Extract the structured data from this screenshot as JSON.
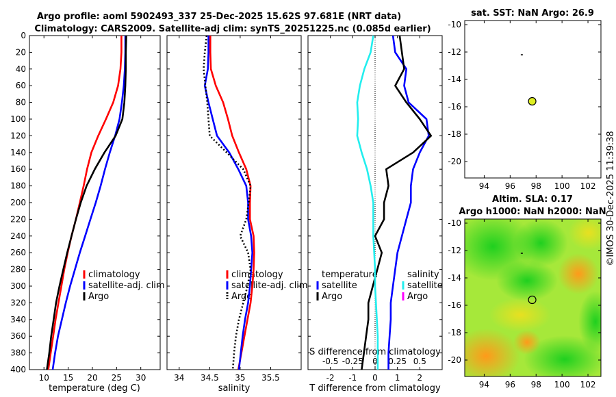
{
  "header": {
    "title_line1": "Argo profile: aoml 5902493_337 25-Dec-2025 15.62S 97.681E (NRT data)",
    "title_line2": "Climatology: CARS2009. Satellite-adj clim: synTS_20251225.nc (0.085d earlier)"
  },
  "credit": "©IMOS 30-Dec-2025 11:39:38",
  "colors": {
    "red": "#ff0000",
    "blue": "#0000ff",
    "black": "#000000",
    "cyan": "#22eeee",
    "magenta": "#ff00ff",
    "dot_fill": "#ddee22"
  },
  "chart_data": [
    {
      "type": "line",
      "id": "temperature",
      "xlabel": "temperature (deg C)",
      "xlim": [
        7,
        34
      ],
      "ylim": [
        0,
        400
      ],
      "xticks": [
        10,
        15,
        20,
        25,
        30
      ],
      "yticks": [
        0,
        20,
        40,
        60,
        80,
        100,
        120,
        140,
        160,
        180,
        200,
        220,
        240,
        260,
        280,
        300,
        320,
        340,
        360,
        380,
        400
      ],
      "legend": [
        "climatology",
        "satellite-adj. clim",
        "Argo"
      ],
      "series": [
        {
          "name": "climatology",
          "color": "red",
          "style": "solid",
          "points": [
            [
              26.0,
              0
            ],
            [
              26.0,
              20
            ],
            [
              25.8,
              40
            ],
            [
              25.3,
              60
            ],
            [
              24.3,
              80
            ],
            [
              22.8,
              100
            ],
            [
              21.2,
              120
            ],
            [
              19.8,
              140
            ],
            [
              18.9,
              160
            ],
            [
              18.2,
              180
            ],
            [
              17.4,
              200
            ],
            [
              16.6,
              220
            ],
            [
              15.7,
              240
            ],
            [
              14.9,
              260
            ],
            [
              14.2,
              280
            ],
            [
              13.6,
              300
            ],
            [
              13.0,
              320
            ],
            [
              12.4,
              340
            ],
            [
              11.9,
              360
            ],
            [
              11.4,
              380
            ],
            [
              10.9,
              400
            ]
          ]
        },
        {
          "name": "satellite-adj. clim",
          "color": "blue",
          "style": "solid",
          "points": [
            [
              26.8,
              0
            ],
            [
              26.8,
              20
            ],
            [
              26.7,
              40
            ],
            [
              26.5,
              60
            ],
            [
              26.1,
              80
            ],
            [
              25.6,
              100
            ],
            [
              24.7,
              120
            ],
            [
              23.6,
              140
            ],
            [
              22.6,
              160
            ],
            [
              21.7,
              180
            ],
            [
              20.7,
              200
            ],
            [
              19.6,
              220
            ],
            [
              18.5,
              240
            ],
            [
              17.4,
              260
            ],
            [
              16.4,
              280
            ],
            [
              15.4,
              300
            ],
            [
              14.5,
              320
            ],
            [
              13.7,
              340
            ],
            [
              12.9,
              360
            ],
            [
              12.3,
              380
            ],
            [
              11.8,
              400
            ]
          ]
        },
        {
          "name": "Argo",
          "color": "black",
          "style": "solid",
          "points": [
            [
              27.0,
              0
            ],
            [
              26.9,
              20
            ],
            [
              26.9,
              40
            ],
            [
              26.8,
              60
            ],
            [
              26.6,
              80
            ],
            [
              26.2,
              100
            ],
            [
              24.8,
              120
            ],
            [
              22.5,
              140
            ],
            [
              20.5,
              160
            ],
            [
              18.8,
              180
            ],
            [
              17.6,
              200
            ],
            [
              16.6,
              220
            ],
            [
              15.7,
              240
            ],
            [
              14.8,
              260
            ],
            [
              14.0,
              280
            ],
            [
              13.2,
              300
            ],
            [
              12.5,
              320
            ],
            [
              12.0,
              340
            ],
            [
              11.5,
              360
            ],
            [
              11.1,
              380
            ],
            [
              10.6,
              400
            ]
          ]
        }
      ]
    },
    {
      "type": "line",
      "id": "salinity",
      "xlabel": "salinity",
      "xlim": [
        33.8,
        36.0
      ],
      "ylim": [
        0,
        400
      ],
      "xticks": [
        34,
        34.5,
        35,
        35.5
      ],
      "xtick_labels": [
        "34",
        "34.5",
        "35",
        "35.5"
      ],
      "legend": [
        "climatology",
        "satellite-adj. clim",
        "Argo"
      ],
      "series": [
        {
          "name": "climatology",
          "color": "red",
          "style": "solid",
          "points": [
            [
              34.51,
              0
            ],
            [
              34.51,
              20
            ],
            [
              34.52,
              40
            ],
            [
              34.6,
              60
            ],
            [
              34.72,
              80
            ],
            [
              34.8,
              100
            ],
            [
              34.87,
              120
            ],
            [
              34.98,
              140
            ],
            [
              35.1,
              160
            ],
            [
              35.17,
              180
            ],
            [
              35.16,
              200
            ],
            [
              35.16,
              220
            ],
            [
              35.22,
              240
            ],
            [
              35.23,
              260
            ],
            [
              35.22,
              280
            ],
            [
              35.2,
              300
            ],
            [
              35.17,
              320
            ],
            [
              35.12,
              340
            ],
            [
              35.07,
              360
            ],
            [
              35.02,
              380
            ],
            [
              34.97,
              400
            ]
          ]
        },
        {
          "name": "satellite-adj. clim",
          "color": "blue",
          "style": "solid",
          "points": [
            [
              34.48,
              0
            ],
            [
              34.48,
              20
            ],
            [
              34.47,
              40
            ],
            [
              34.42,
              60
            ],
            [
              34.48,
              80
            ],
            [
              34.55,
              100
            ],
            [
              34.62,
              120
            ],
            [
              34.82,
              140
            ],
            [
              34.97,
              160
            ],
            [
              35.1,
              180
            ],
            [
              35.13,
              200
            ],
            [
              35.13,
              220
            ],
            [
              35.18,
              240
            ],
            [
              35.2,
              260
            ],
            [
              35.18,
              280
            ],
            [
              35.16,
              300
            ],
            [
              35.13,
              320
            ],
            [
              35.08,
              340
            ],
            [
              35.04,
              360
            ],
            [
              35.01,
              380
            ],
            [
              34.98,
              400
            ]
          ]
        },
        {
          "name": "Argo",
          "color": "black",
          "style": "dotted",
          "points": [
            [
              34.45,
              0
            ],
            [
              34.42,
              20
            ],
            [
              34.4,
              40
            ],
            [
              34.43,
              60
            ],
            [
              34.46,
              80
            ],
            [
              34.48,
              100
            ],
            [
              34.5,
              120
            ],
            [
              34.78,
              140
            ],
            [
              35.05,
              160
            ],
            [
              35.17,
              180
            ],
            [
              35.14,
              200
            ],
            [
              35.1,
              220
            ],
            [
              35.0,
              240
            ],
            [
              35.13,
              260
            ],
            [
              35.17,
              280
            ],
            [
              35.12,
              300
            ],
            [
              35.05,
              320
            ],
            [
              34.98,
              340
            ],
            [
              34.93,
              360
            ],
            [
              34.9,
              380
            ],
            [
              34.88,
              400
            ]
          ]
        }
      ]
    },
    {
      "type": "line",
      "id": "difference",
      "xlabel": "T difference from climatology",
      "top_label": "S difference from climatology",
      "xlim": [
        -3.0,
        3.0
      ],
      "ylim": [
        0,
        400
      ],
      "xticks": [
        -2,
        -1,
        0,
        1,
        2
      ],
      "top_ticks": [
        -0.5,
        -0.25,
        0,
        0.25,
        0.5
      ],
      "top_tick_labels": [
        "-0.5",
        "-0.25",
        "0",
        "0.25",
        "0.5"
      ],
      "legend_temperature_title": "temperature",
      "legend_salinity_title": "salinity",
      "legend_temperature": [
        "satellite",
        "Argo"
      ],
      "legend_salinity": [
        "satellite",
        "Argo"
      ],
      "series": [
        {
          "name": "temperature satellite",
          "color": "blue",
          "style": "solid",
          "points": [
            [
              0.8,
              0
            ],
            [
              0.9,
              20
            ],
            [
              1.4,
              40
            ],
            [
              1.3,
              60
            ],
            [
              1.5,
              80
            ],
            [
              2.3,
              100
            ],
            [
              2.4,
              120
            ],
            [
              2.0,
              140
            ],
            [
              1.7,
              160
            ],
            [
              1.6,
              180
            ],
            [
              1.6,
              200
            ],
            [
              1.4,
              220
            ],
            [
              1.2,
              240
            ],
            [
              1.0,
              260
            ],
            [
              0.9,
              280
            ],
            [
              0.8,
              300
            ],
            [
              0.7,
              320
            ],
            [
              0.7,
              340
            ],
            [
              0.65,
              360
            ],
            [
              0.6,
              380
            ],
            [
              0.6,
              400
            ]
          ]
        },
        {
          "name": "temperature Argo",
          "color": "black",
          "style": "solid",
          "points": [
            [
              1.1,
              0
            ],
            [
              1.2,
              20
            ],
            [
              1.3,
              40
            ],
            [
              0.9,
              60
            ],
            [
              1.4,
              80
            ],
            [
              2.0,
              100
            ],
            [
              2.5,
              120
            ],
            [
              1.7,
              140
            ],
            [
              0.5,
              160
            ],
            [
              0.6,
              180
            ],
            [
              0.4,
              200
            ],
            [
              0.4,
              220
            ],
            [
              0.0,
              240
            ],
            [
              0.3,
              260
            ],
            [
              0.1,
              280
            ],
            [
              -0.1,
              300
            ],
            [
              -0.3,
              320
            ],
            [
              -0.3,
              340
            ],
            [
              -0.4,
              360
            ],
            [
              -0.5,
              380
            ],
            [
              -0.6,
              400
            ]
          ]
        },
        {
          "name": "salinity satellite",
          "color": "cyan",
          "style": "solid",
          "points": [
            [
              -0.02,
              0
            ],
            [
              -0.05,
              20
            ],
            [
              -0.12,
              40
            ],
            [
              -0.17,
              60
            ],
            [
              -0.2,
              80
            ],
            [
              -0.19,
              100
            ],
            [
              -0.2,
              120
            ],
            [
              -0.15,
              140
            ],
            [
              -0.09,
              160
            ],
            [
              -0.05,
              180
            ],
            [
              -0.02,
              200
            ],
            [
              -0.02,
              220
            ],
            [
              -0.02,
              240
            ],
            [
              -0.01,
              260
            ],
            [
              0.0,
              280
            ],
            [
              0.0,
              300
            ],
            [
              0.01,
              320
            ],
            [
              0.02,
              340
            ],
            [
              0.03,
              360
            ],
            [
              0.03,
              380
            ],
            [
              0.03,
              400
            ]
          ]
        }
      ]
    },
    {
      "type": "scatter",
      "id": "sat-sst-map",
      "title": "sat. SST: NaN Argo: 26.9",
      "xlim": [
        92.5,
        103
      ],
      "ylim": [
        -21.2,
        -9.7
      ],
      "xticks": [
        94,
        96,
        98,
        100,
        102
      ],
      "yticks": [
        -10,
        -12,
        -14,
        -16,
        -18,
        -20
      ],
      "points": [
        {
          "x": 97.7,
          "y": -15.6,
          "label": "profile"
        }
      ],
      "marks": [
        {
          "x": 96.9,
          "y": -12.2
        }
      ]
    },
    {
      "type": "heatmap",
      "id": "altimetry-map",
      "title_line1": "Altim. SLA: 0.17",
      "title_line2": "Argo h1000: NaN h2000: NaN",
      "xlim": [
        92.5,
        103
      ],
      "ylim": [
        -21.2,
        -9.7
      ],
      "xticks": [
        94,
        96,
        98,
        100,
        102
      ],
      "yticks": [
        -10,
        -12,
        -14,
        -16,
        -18,
        -20
      ],
      "points": [
        {
          "x": 97.7,
          "y": -15.6,
          "label": "profile"
        }
      ],
      "marks": [
        {
          "x": 96.9,
          "y": -12.2
        }
      ]
    }
  ]
}
